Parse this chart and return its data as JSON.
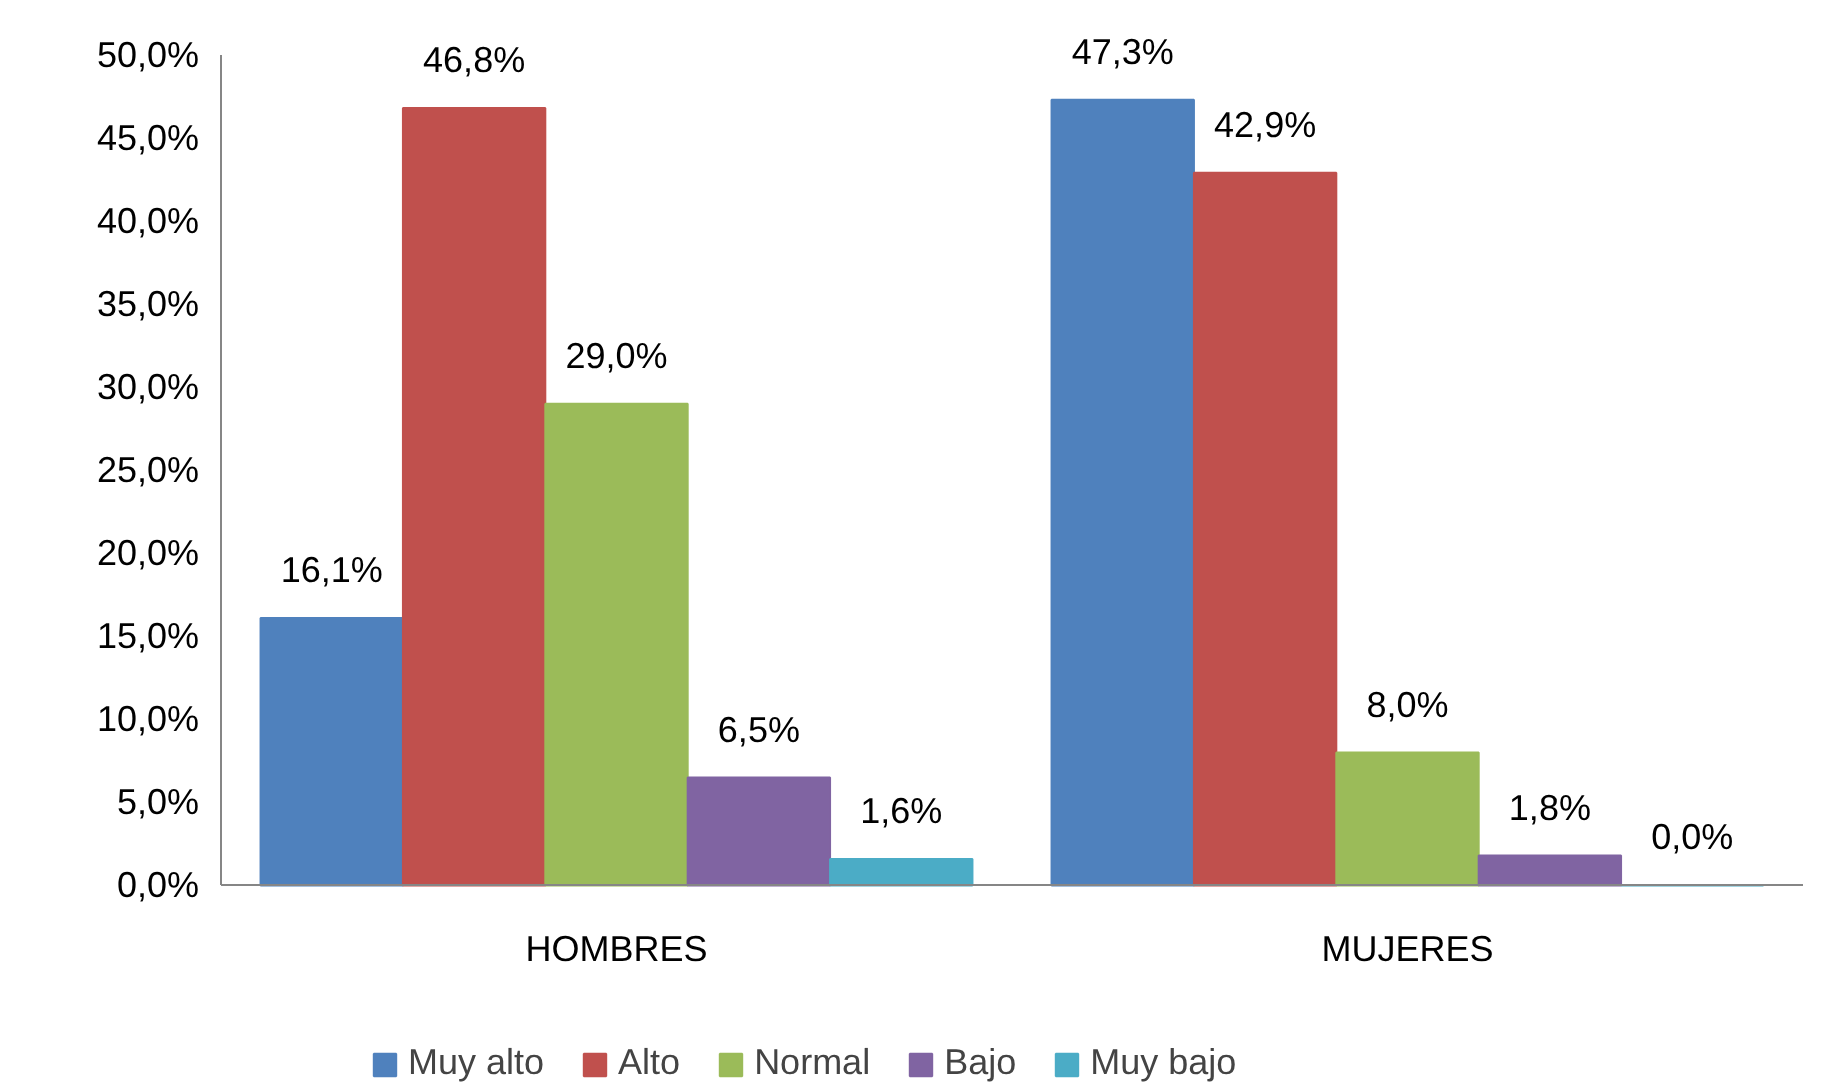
{
  "chart_data": {
    "type": "bar",
    "categories": [
      "HOMBRES",
      "MUJERES"
    ],
    "series": [
      {
        "name": "Muy alto",
        "color": "#4f81bd",
        "values": [
          16.1,
          47.3
        ],
        "value_labels": [
          "16,1%",
          "47,3%"
        ]
      },
      {
        "name": "Alto",
        "color": "#c0504d",
        "values": [
          46.8,
          42.9
        ],
        "value_labels": [
          "46,8%",
          "42,9%"
        ]
      },
      {
        "name": "Normal",
        "color": "#9bbb59",
        "values": [
          29.0,
          8.0
        ],
        "value_labels": [
          "29,0%",
          "8,0%"
        ]
      },
      {
        "name": "Bajo",
        "color": "#8064a2",
        "values": [
          6.5,
          1.8
        ],
        "value_labels": [
          "6,5%",
          "1,8%"
        ]
      },
      {
        "name": "Muy bajo",
        "color": "#4bacc6",
        "values": [
          1.6,
          0.0
        ],
        "value_labels": [
          "1,6%",
          "0,0%"
        ]
      }
    ],
    "ylim": [
      0,
      50
    ],
    "yticks": [
      {
        "value": 0,
        "label": "0,0%"
      },
      {
        "value": 5,
        "label": "5,0%"
      },
      {
        "value": 10,
        "label": "10,0%"
      },
      {
        "value": 15,
        "label": "15,0%"
      },
      {
        "value": 20,
        "label": "20,0%"
      },
      {
        "value": 25,
        "label": "25,0%"
      },
      {
        "value": 30,
        "label": "30,0%"
      },
      {
        "value": 35,
        "label": "35,0%"
      },
      {
        "value": 40,
        "label": "40,0%"
      },
      {
        "value": 45,
        "label": "45,0%"
      },
      {
        "value": 50,
        "label": "50,0%"
      }
    ],
    "grid": false,
    "legend": "bottom"
  }
}
